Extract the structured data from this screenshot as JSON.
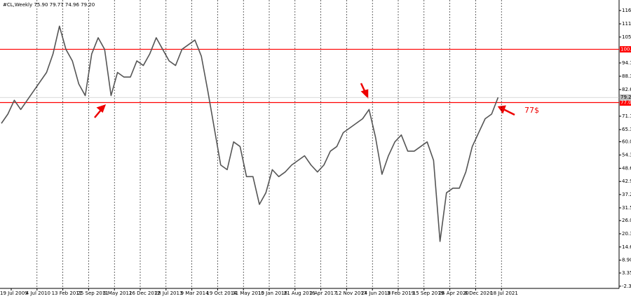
{
  "chart_data": {
    "type": "line",
    "title": "#CL,Weekly  75.90 79.77 74.96 79.20",
    "annotation": "77$",
    "color": "#555555",
    "categories": [
      "19 Jul 2009",
      null,
      null,
      null,
      "4 Jul 2010",
      null,
      null,
      null,
      "13 Feb 2011",
      null,
      null,
      null,
      "25 Sep 2011",
      null,
      null,
      null,
      "6 May 2012",
      null,
      null,
      null,
      "16 Dec 2012",
      null,
      null,
      null,
      "28 Jul 2013",
      null,
      null,
      null,
      "9 Mar 2014",
      null,
      null,
      null,
      "19 Oct 2014",
      null,
      null,
      null,
      "31 May 2015",
      null,
      null,
      null,
      "10 Jan 2016",
      null,
      null,
      null,
      "21 Aug 2016",
      null,
      null,
      null,
      "2 Apr 2017",
      null,
      null,
      null,
      "12 Nov 2017",
      null,
      null,
      null,
      "24 Jun 2018",
      null,
      null,
      null,
      "3 Feb 2019",
      null,
      null,
      null,
      "15 Sep 2019",
      null,
      null,
      null,
      "26 Apr 2020",
      null,
      null,
      null,
      "6 Dec 2020",
      null,
      null,
      null,
      "18 Jul 2021",
      null
    ],
    "values": [
      68,
      72,
      78,
      74,
      78,
      82,
      86,
      90,
      98,
      110,
      100,
      95,
      85,
      80,
      98,
      105,
      100,
      80,
      90,
      88,
      88,
      95,
      93,
      98,
      105,
      100,
      95,
      93,
      100,
      102,
      104,
      97,
      82,
      66,
      50,
      48,
      60,
      58,
      45,
      45,
      33,
      38,
      48,
      45,
      47,
      50,
      52,
      54,
      50,
      47,
      50,
      56,
      58,
      64,
      66,
      68,
      70,
      74,
      62,
      46,
      54,
      60,
      63,
      56,
      56,
      58,
      60,
      52,
      17,
      38,
      40,
      40,
      47,
      58,
      64,
      70,
      72,
      79.2
    ],
    "ylim": [
      -3.3,
      121.3
    ],
    "yticks": [
      116.75,
      {
        "value": 111,
        "label": "111.00"
      },
      {
        "value": 105.3,
        "label": "105.30"
      },
      {
        "value": 94.1,
        "label": "94.10"
      },
      88.35,
      {
        "value": 82.6,
        "label": "82.60"
      },
      {
        "value": 71.1,
        "label": "71.10"
      },
      {
        "value": 65.3,
        "label": "65.30"
      },
      60.05,
      54.35,
      {
        "value": 48.6,
        "label": "48.60"
      },
      {
        "value": 42.9,
        "label": "42.90"
      },
      37.25,
      {
        "value": 31.5,
        "label": "31.50"
      },
      {
        "value": 26,
        "label": "26.00"
      },
      {
        "value": 20.3,
        "label": "20.30"
      },
      {
        "value": 14.6,
        "label": "14.60"
      },
      {
        "value": 8.9,
        "label": "8.90"
      },
      3.35,
      -2.35
    ],
    "hlines": [
      {
        "value": 100,
        "label": "100.00",
        "color": "#ff0000"
      },
      {
        "value": 77,
        "label": "77.00",
        "color": "#ff0000"
      }
    ],
    "last_price": {
      "value": 79.2,
      "label": "79.20",
      "color": "#c0c0c0"
    }
  }
}
